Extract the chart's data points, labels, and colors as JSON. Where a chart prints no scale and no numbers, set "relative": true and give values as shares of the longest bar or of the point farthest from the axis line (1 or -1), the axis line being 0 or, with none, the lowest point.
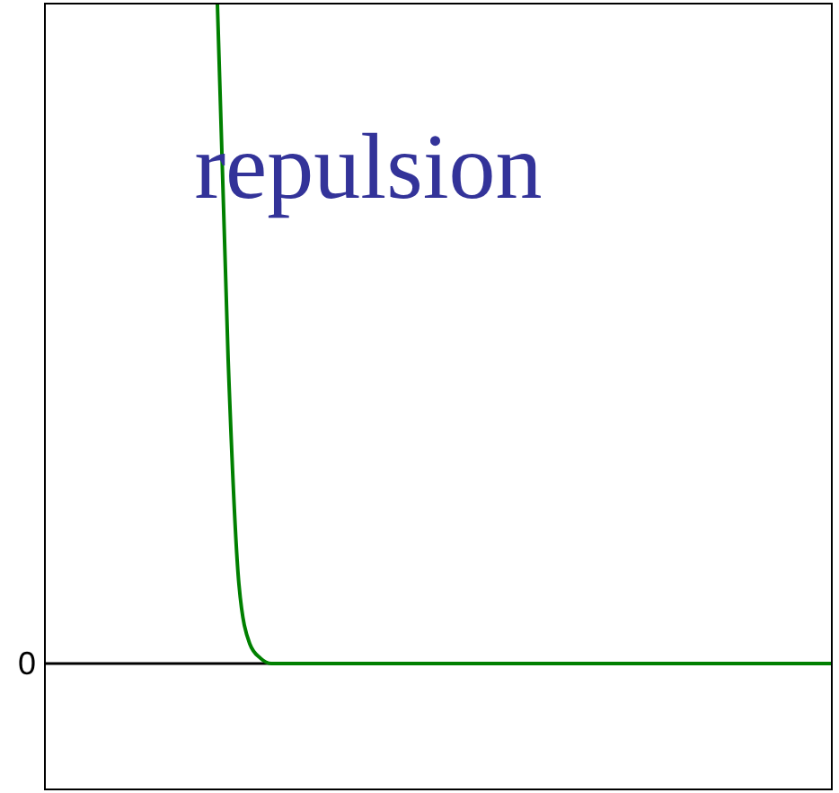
{
  "chart_data": {
    "type": "line",
    "relative": true,
    "categories": [
      null,
      null,
      null,
      null,
      null,
      null,
      null,
      null,
      null,
      null,
      null,
      null,
      null,
      null,
      null,
      null,
      null,
      null,
      null,
      null,
      null,
      null,
      null,
      null,
      null,
      null,
      null,
      null,
      null,
      null,
      null,
      null,
      null,
      null,
      null,
      null,
      null,
      null,
      null,
      null,
      null,
      null,
      null,
      null,
      null,
      null,
      null,
      null,
      null,
      null,
      null,
      null,
      null,
      null,
      null,
      null,
      null,
      null,
      null,
      null,
      null,
      null,
      null,
      null,
      null,
      null,
      null,
      null,
      null,
      null,
      null,
      null,
      null,
      null
    ],
    "series": [
      {
        "color": "#008000",
        "values": [
          null,
          null,
          null,
          null,
          null,
          null,
          null,
          null,
          null,
          null,
          null,
          null,
          null,
          null,
          null,
          null,
          1,
          0.46,
          0.12,
          0.03,
          0.008,
          0,
          0,
          0,
          0,
          0,
          0,
          0,
          0,
          0,
          0,
          0,
          0,
          0,
          0,
          0,
          0,
          0,
          0,
          0,
          0,
          0,
          0,
          0,
          0,
          0,
          0,
          0,
          0,
          0,
          0,
          0,
          0,
          0,
          0,
          0,
          0,
          0,
          0,
          0,
          0,
          0,
          0,
          0,
          0,
          0,
          0,
          0,
          0,
          0,
          0,
          0,
          0,
          0
        ]
      }
    ],
    "ref_lines": [
      {
        "axis": "y",
        "value": 0,
        "label": "0",
        "color": "#000000"
      }
    ],
    "annotations": [
      "repulsion"
    ],
    "marker": "none",
    "line_style": "solid"
  }
}
